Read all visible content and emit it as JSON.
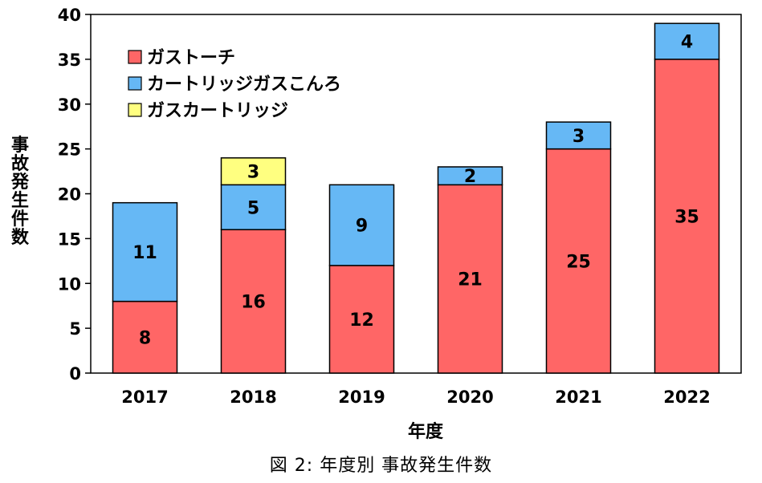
{
  "chart_data": {
    "type": "bar",
    "stacked": true,
    "categories": [
      "2017",
      "2018",
      "2019",
      "2020",
      "2021",
      "2022"
    ],
    "series": [
      {
        "name": "ガストーチ",
        "color": "#ff6666",
        "values": [
          8,
          16,
          12,
          21,
          25,
          35
        ]
      },
      {
        "name": "カートリッジガスこんろ",
        "color": "#66b8f5",
        "values": [
          11,
          5,
          9,
          2,
          3,
          4
        ]
      },
      {
        "name": "ガスカートリッジ",
        "color": "#ffff80",
        "values": [
          0,
          3,
          0,
          0,
          0,
          0
        ]
      }
    ],
    "xlabel": "年度",
    "ylabel": "事故発生件数",
    "ylim": [
      0,
      40
    ],
    "yticks": [
      0,
      5,
      10,
      15,
      20,
      25,
      30,
      35,
      40
    ],
    "legend_position": "top-left",
    "grid": false
  },
  "caption": "図 2: 年度別 事故発生件数"
}
